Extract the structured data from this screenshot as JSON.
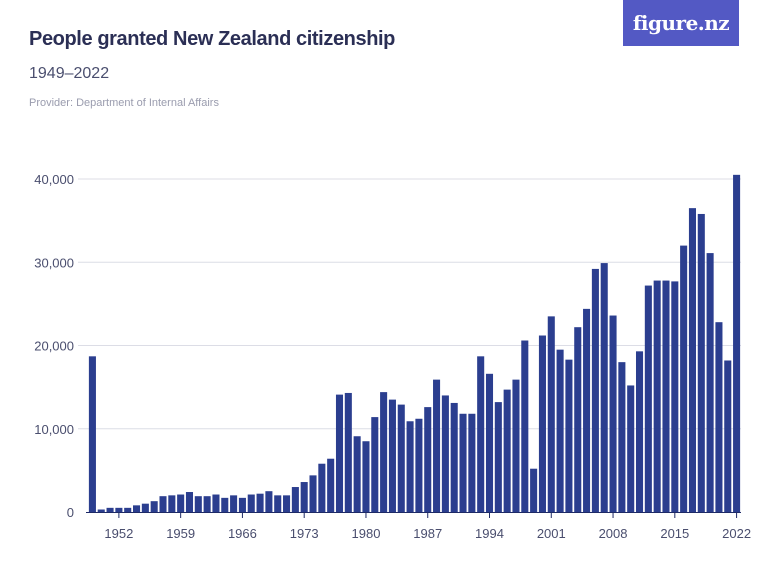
{
  "header": {
    "title": "People granted New Zealand citizenship",
    "subtitle": "1949–2022",
    "provider": "Provider: Department of Internal Affairs",
    "logo_text": "figure.nz"
  },
  "colors": {
    "bar": "#2b3e8f",
    "grid": "#dcdde6",
    "logo_bg": "#5359c4"
  },
  "chart_data": {
    "type": "bar",
    "title": "People granted New Zealand citizenship",
    "subtitle": "1949–2022",
    "xlabel": "",
    "ylabel": "",
    "x": [
      1949,
      1950,
      1951,
      1952,
      1953,
      1954,
      1955,
      1956,
      1957,
      1958,
      1959,
      1960,
      1961,
      1962,
      1963,
      1964,
      1965,
      1966,
      1967,
      1968,
      1969,
      1970,
      1971,
      1972,
      1973,
      1974,
      1975,
      1976,
      1977,
      1978,
      1979,
      1980,
      1981,
      1982,
      1983,
      1984,
      1985,
      1986,
      1987,
      1988,
      1989,
      1990,
      1991,
      1992,
      1993,
      1994,
      1995,
      1996,
      1997,
      1998,
      1999,
      2000,
      2001,
      2002,
      2003,
      2004,
      2005,
      2006,
      2007,
      2008,
      2009,
      2010,
      2011,
      2012,
      2013,
      2014,
      2015,
      2016,
      2017,
      2018,
      2019,
      2020,
      2021,
      2022
    ],
    "values": [
      18700,
      300,
      500,
      500,
      500,
      800,
      1000,
      1300,
      1900,
      2000,
      2100,
      2400,
      1900,
      1900,
      2100,
      1700,
      2000,
      1700,
      2100,
      2200,
      2500,
      2000,
      2000,
      3000,
      3600,
      4400,
      5800,
      6400,
      14100,
      14300,
      9100,
      8500,
      11400,
      14400,
      13500,
      12900,
      10900,
      11200,
      12600,
      15900,
      14000,
      13100,
      11800,
      11800,
      18700,
      16600,
      13200,
      14700,
      15900,
      20600,
      5200,
      21200,
      23500,
      19500,
      18300,
      22200,
      24400,
      29200,
      29900,
      23600,
      18000,
      15200,
      19300,
      27200,
      27800,
      27800,
      27700,
      32000,
      36500,
      35800,
      31100,
      22800,
      18200,
      40500
    ],
    "x_tick_labels": [
      "1952",
      "1959",
      "1966",
      "1973",
      "1980",
      "1987",
      "1994",
      "2001",
      "2008",
      "2015",
      "2022"
    ],
    "y_tick_labels": [
      "0",
      "10,000",
      "20,000",
      "30,000",
      "40,000"
    ],
    "ylim": [
      0,
      42000
    ],
    "grid": true,
    "legend": "none"
  }
}
